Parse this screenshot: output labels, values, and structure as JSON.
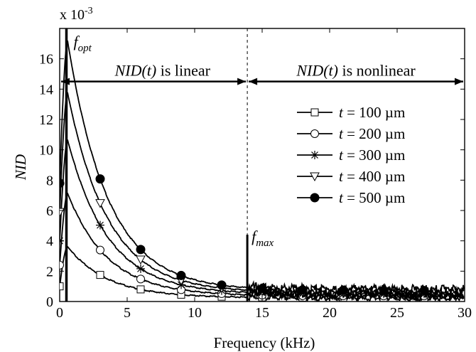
{
  "chart_data": {
    "type": "line",
    "title": "",
    "xlabel": "Frequency (kHz)",
    "ylabel": "NID",
    "y_multiplier": "x 10",
    "y_multiplier_exp": "-3",
    "xlim": [
      0,
      30
    ],
    "ylim": [
      0,
      18
    ],
    "x_ticks": [
      "0",
      "5",
      "10",
      "15",
      "20",
      "25",
      "30"
    ],
    "y_ticks": [
      "0",
      "2",
      "4",
      "6",
      "8",
      "10",
      "12",
      "14",
      "16"
    ],
    "grid": false,
    "legend_position": "right",
    "annotations": {
      "f_opt": {
        "base": "f",
        "sub": "opt",
        "x": 0.5
      },
      "f_max": {
        "base": "f",
        "sub": "max",
        "x": 13.9
      },
      "linear_region": {
        "label_italic": "NID(t)",
        "label_rest": " is linear"
      },
      "nonlinear_region": {
        "label_italic": "NID(t)",
        "label_rest": " is nonlinear"
      },
      "arrow_y": 14.5
    },
    "series": [
      {
        "name": "t = 100 µm",
        "t_label": "t",
        "rest_label": " = 100 µm",
        "marker": "square",
        "peak": 3.6,
        "start": 1.0,
        "marker_x": [
          0,
          3,
          6,
          9,
          12,
          15,
          18,
          21,
          24,
          27
        ]
      },
      {
        "name": "t = 200 µm",
        "t_label": "t",
        "rest_label": " = 200 µm",
        "marker": "circle",
        "peak": 7.1,
        "start": 2.4,
        "marker_x": [
          0,
          3,
          6,
          9,
          12,
          15,
          18,
          21,
          24,
          27
        ]
      },
      {
        "name": "t = 300 µm",
        "t_label": "t",
        "rest_label": " = 300 µm",
        "marker": "star",
        "peak": 10.6,
        "start": 4.0,
        "marker_x": [
          0,
          3,
          6,
          9,
          12,
          15,
          18,
          21,
          24,
          27
        ]
      },
      {
        "name": "t = 400 µm",
        "t_label": "t",
        "rest_label": " = 400 µm",
        "marker": "triangle-down",
        "peak": 13.7,
        "start": 5.9,
        "marker_x": [
          0,
          3,
          6,
          9,
          12,
          15,
          18,
          21,
          24,
          27
        ]
      },
      {
        "name": "t = 500 µm",
        "t_label": "t",
        "rest_label": " = 500 µm",
        "marker": "filled-circle",
        "peak": 17.1,
        "start": 7.8,
        "marker_x": [
          0,
          3,
          6,
          9,
          12,
          15,
          18,
          21,
          24,
          27
        ]
      }
    ]
  }
}
